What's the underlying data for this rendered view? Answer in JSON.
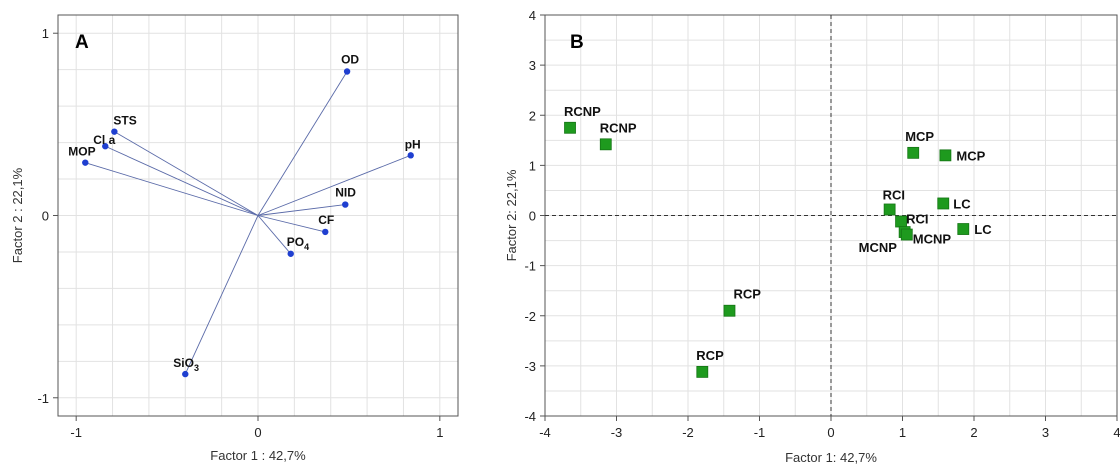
{
  "chart_data": [
    {
      "type": "scatter",
      "panel": "A",
      "xlabel": "Factor 1 : 42,7%",
      "ylabel": "Factor 2 : 22,1%",
      "xlim": [
        -1.1,
        1.1
      ],
      "ylim": [
        -1.1,
        1.1
      ],
      "xticks": [
        -1,
        0,
        1
      ],
      "yticks": [
        -1,
        0,
        1
      ],
      "grid": true,
      "vectors": [
        {
          "name": "OD",
          "x": 0.49,
          "y": 0.79
        },
        {
          "name": "pH",
          "x": 0.84,
          "y": 0.33
        },
        {
          "name": "NID",
          "x": 0.48,
          "y": 0.06
        },
        {
          "name": "CF",
          "x": 0.37,
          "y": -0.09
        },
        {
          "name": "PO",
          "sub": "4",
          "x": 0.18,
          "y": -0.21
        },
        {
          "name": "SiO",
          "sub": "3",
          "x": -0.4,
          "y": -0.87
        },
        {
          "name": "STS",
          "x": -0.79,
          "y": 0.46
        },
        {
          "name": "Cl a",
          "x": -0.84,
          "y": 0.38
        },
        {
          "name": "MOP",
          "x": -0.95,
          "y": 0.29
        }
      ]
    },
    {
      "type": "scatter",
      "panel": "B",
      "xlabel": "Factor 1: 42,7%",
      "ylabel": "Factor 2: 22,1%",
      "xlim": [
        -4,
        4
      ],
      "ylim": [
        -4,
        4
      ],
      "xticks": [
        -4,
        -3,
        -2,
        -1,
        0,
        1,
        2,
        3,
        4
      ],
      "yticks": [
        -4,
        -3,
        -2,
        -1,
        0,
        1,
        2,
        3,
        4
      ],
      "grid": true,
      "points": [
        {
          "label": "RCNP",
          "x": -3.65,
          "y": 1.75
        },
        {
          "label": "RCNP",
          "x": -3.15,
          "y": 1.42
        },
        {
          "label": "RCP",
          "x": -1.42,
          "y": -1.9
        },
        {
          "label": "RCP",
          "x": -1.8,
          "y": -3.12
        },
        {
          "label": "MCP",
          "x": 1.15,
          "y": 1.25
        },
        {
          "label": "MCP",
          "x": 1.6,
          "y": 1.2
        },
        {
          "label": "LC",
          "x": 1.57,
          "y": 0.24
        },
        {
          "label": "LC",
          "x": 1.85,
          "y": -0.27
        },
        {
          "label": "RCI",
          "x": 0.82,
          "y": 0.12
        },
        {
          "label": "RCI",
          "x": 0.98,
          "y": -0.12
        },
        {
          "label": "MCNP",
          "x": 1.03,
          "y": -0.33
        },
        {
          "label": "MCNP",
          "x": 1.06,
          "y": -0.38
        }
      ]
    }
  ]
}
